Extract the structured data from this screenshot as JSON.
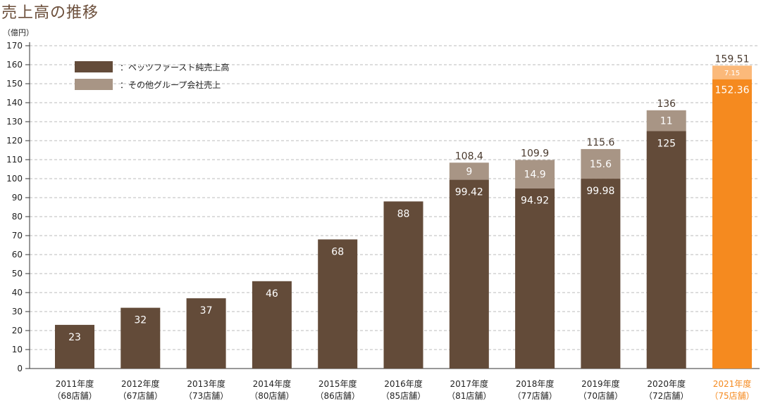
{
  "chart_data": {
    "type": "bar",
    "stacked": true,
    "title": "売上高の推移",
    "ylabel": "（億円）",
    "ylim": [
      0,
      170
    ],
    "yticks": [
      0,
      10,
      20,
      30,
      40,
      50,
      60,
      70,
      80,
      90,
      100,
      110,
      120,
      130,
      140,
      150,
      160,
      170
    ],
    "grid": true,
    "legend_position": "top-left",
    "categories": [
      "2011年度",
      "2012年度",
      "2013年度",
      "2014年度",
      "2015年度",
      "2016年度",
      "2017年度",
      "2018年度",
      "2019年度",
      "2020年度",
      "2021年度"
    ],
    "store_counts": [
      "（68店舗）",
      "（67店舗）",
      "（73店舗）",
      "（80店舗）",
      "（86店舗）",
      "（85店舗）",
      "（81店舗）",
      "（77店舗）",
      "（70店舗）",
      "（72店舗）",
      "（75店舗）"
    ],
    "series": [
      {
        "name": "：ペッツファースト純売上高",
        "color": "#634b39",
        "values": [
          23,
          32,
          37,
          46,
          68,
          88,
          99.42,
          94.92,
          99.98,
          125,
          152.36
        ],
        "labels": [
          "23",
          "32",
          "37",
          "46",
          "68",
          "88",
          "99.42",
          "94.92",
          "99.98",
          "125",
          "152.36"
        ]
      },
      {
        "name": "：その他グループ会社売上",
        "color": "#a89585",
        "values": [
          0,
          0,
          0,
          0,
          0,
          0,
          9,
          14.9,
          15.6,
          11,
          7.15
        ],
        "labels": [
          "",
          "",
          "",
          "",
          "",
          "",
          "9",
          "14.9",
          "15.6",
          "11",
          "7.15"
        ]
      }
    ],
    "totals": [
      null,
      null,
      null,
      null,
      null,
      null,
      108.4,
      109.9,
      115.6,
      136,
      159.51
    ],
    "total_labels": [
      "",
      "",
      "",
      "",
      "",
      "",
      "108.4",
      "109.9",
      "115.6",
      "136",
      "159.51"
    ],
    "highlight": {
      "index": 10,
      "main_color": "#f58a1f",
      "secondary_color": "#fbb97a",
      "label_color": "#f58a1f"
    },
    "colors": {
      "text": "#222222",
      "total_text": "#4a3a2e",
      "grid": "#bbbbbb",
      "axis": "#333333"
    }
  }
}
